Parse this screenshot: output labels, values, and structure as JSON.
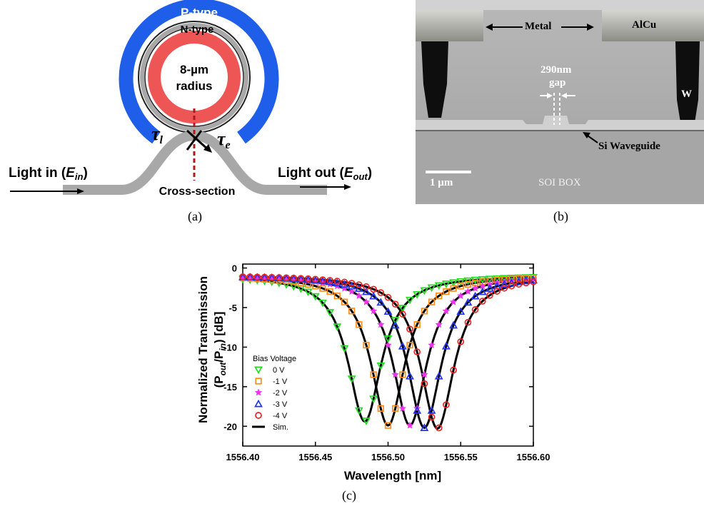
{
  "panel_a": {
    "caption": "(a)",
    "p_type": "P-type",
    "n_type": "N-type",
    "radius_line1": "8-µm",
    "radius_line2": "radius",
    "tau_l": "τ",
    "tau_l_sub": "l",
    "tau_e": "τ",
    "tau_e_sub": "e",
    "light_in": "Light in (",
    "light_in_var": "E",
    "light_in_sub": "in",
    "light_in_end": ")",
    "light_out": "Light out (",
    "light_out_var": "E",
    "light_out_sub": "out",
    "light_out_end": ")",
    "cross_section": "Cross-section",
    "colors": {
      "p_type": "#1f5ee8",
      "n_type": "#ee5555",
      "waveguide": "#a8a8a8",
      "cut_line": "#b01818"
    }
  },
  "panel_b": {
    "caption": "(b)",
    "metal": "Metal",
    "alcu": "AlCu",
    "gap_line1": "290nm",
    "gap_line2": "gap",
    "w": "W",
    "si_waveguide": "Si Waveguide",
    "scale": "1 µm",
    "soi_box": "SOI BOX"
  },
  "panel_c": {
    "caption": "(c)",
    "chart_data": {
      "type": "line",
      "xlabel": "Wavelength [nm]",
      "ylabel_line1": "Normalized Transmission",
      "ylabel_line2_pre": "(P",
      "ylabel_line2_sub1": "out",
      "ylabel_line2_mid": "/P",
      "ylabel_line2_sub2": "in",
      "ylabel_line2_post": ") [dB]",
      "xlim": [
        1556.4,
        1556.6
      ],
      "ylim": [
        -22.5,
        0.5
      ],
      "xticks": [
        "1556.40",
        "1556.45",
        "1556.50",
        "1556.55",
        "1556.60"
      ],
      "xtick_values": [
        1556.4,
        1556.45,
        1556.5,
        1556.55,
        1556.6
      ],
      "yticks": [
        "0",
        "-5",
        "-10",
        "-15",
        "-20"
      ],
      "ytick_values": [
        0,
        -5,
        -10,
        -15,
        -20
      ],
      "legend_title": "Bias Voltage",
      "legend_position": "lower-left",
      "series": [
        {
          "name": "0 V",
          "marker": "triangle-down",
          "color": "#22dd22",
          "center": 1556.484,
          "min": -19.4,
          "width": 0.014,
          "floor": -0.9
        },
        {
          "name": "-1 V",
          "marker": "square",
          "color": "#ff8c1a",
          "center": 1556.5,
          "min": -19.9,
          "width": 0.014,
          "floor": -0.9
        },
        {
          "name": "-2 V",
          "marker": "star",
          "color": "#ee33ee",
          "center": 1556.515,
          "min": -19.9,
          "width": 0.014,
          "floor": -0.9
        },
        {
          "name": "-3 V",
          "marker": "triangle-up",
          "color": "#2233ee",
          "center": 1556.525,
          "min": -20.2,
          "width": 0.014,
          "floor": -0.9
        },
        {
          "name": "-4 V",
          "marker": "circle",
          "color": "#ee2222",
          "center": 1556.534,
          "min": -20.3,
          "width": 0.014,
          "floor": -0.9
        }
      ],
      "sim_label": "Sim.",
      "x_sample_start": 1556.4,
      "x_sample_end": 1556.6,
      "x_sample_step": 0.005
    }
  }
}
